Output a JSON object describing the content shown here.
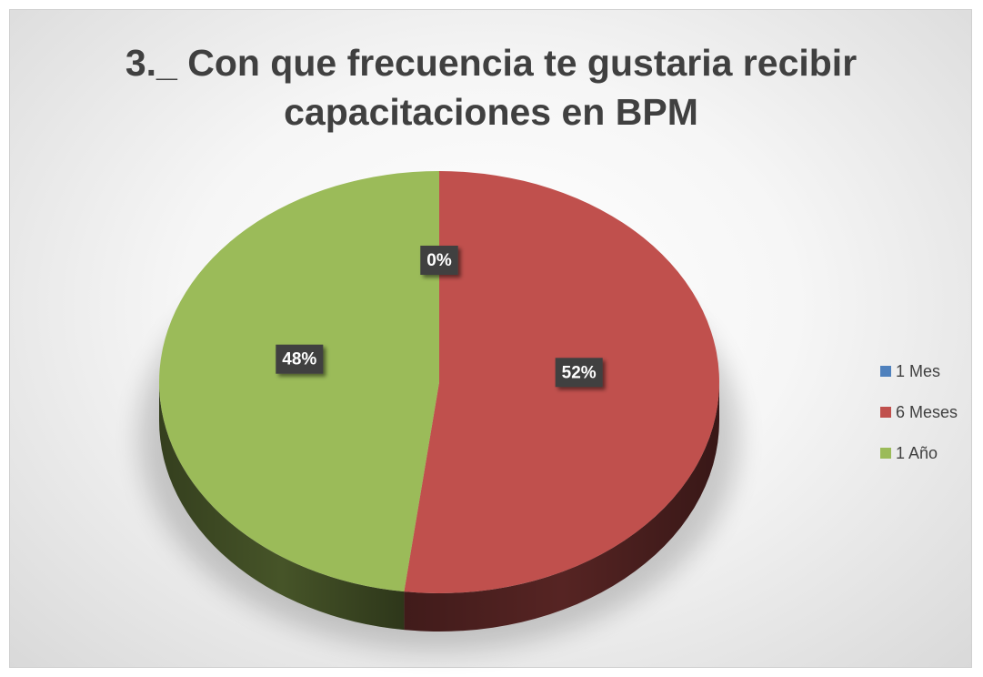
{
  "chart_data": {
    "type": "pie3d",
    "title": "3._ Con que frecuencia te gustaria recibir capacitaciones en BPM",
    "categories": [
      "1 Mes",
      "6 Meses",
      "1 Año"
    ],
    "values": [
      0,
      52,
      48
    ],
    "value_labels": [
      "0%",
      "52%",
      "48%"
    ],
    "colors": [
      "#4f81bd",
      "#c0504d",
      "#9bbb59"
    ],
    "legend": "right"
  }
}
